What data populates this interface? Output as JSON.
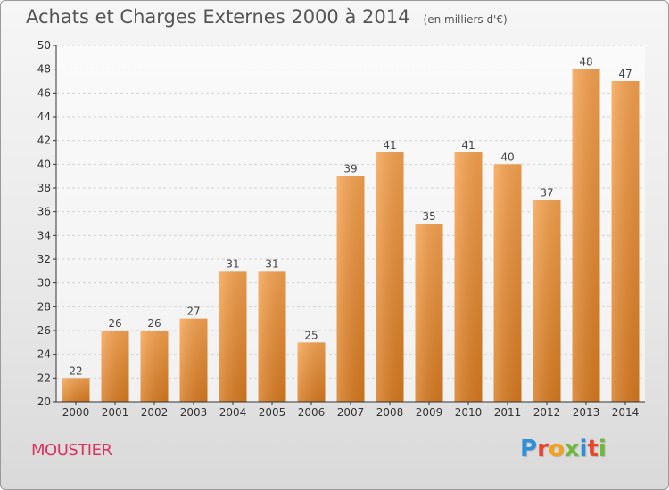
{
  "header": {
    "title": "Achats et Charges Externes 2000 à 2014",
    "unit": "(en milliers d'€)"
  },
  "footer": {
    "town": "MOUSTIER",
    "logo": "Proxiti"
  },
  "colors": {
    "bar_light": "#f7a350",
    "bar_dark": "#d87a1f",
    "grid": "#d2d2d2",
    "axis": "#333333",
    "town": "#d9335e",
    "logo_letters": [
      "#2f8fd8",
      "#e8452c",
      "#f4a01c",
      "#6fb83a",
      "#2f8fd8",
      "#e8452c",
      "#6fb83a"
    ]
  },
  "chart_data": {
    "type": "bar",
    "title": "Achats et Charges Externes 2000 à 2014",
    "subtitle": "(en milliers d'€)",
    "categories": [
      "2000",
      "2001",
      "2002",
      "2003",
      "2004",
      "2005",
      "2006",
      "2007",
      "2008",
      "2009",
      "2010",
      "2011",
      "2012",
      "2013",
      "2014"
    ],
    "values": [
      22,
      26,
      26,
      27,
      31,
      31,
      25,
      39,
      41,
      35,
      41,
      40,
      37,
      48,
      47
    ],
    "yticks": [
      20,
      22,
      24,
      26,
      28,
      30,
      32,
      34,
      36,
      38,
      40,
      42,
      44,
      46,
      48,
      50
    ],
    "ylim": [
      20,
      50
    ],
    "grid": true,
    "legend": "none"
  }
}
